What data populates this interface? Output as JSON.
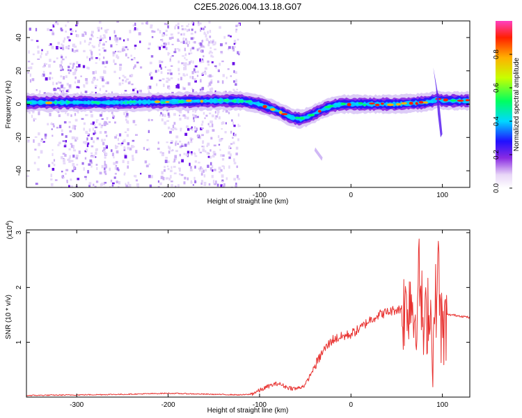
{
  "title": "C2E5.2026.004.13.18.G07",
  "chart_data": [
    {
      "type": "heatmap",
      "title": "C2E5.2026.004.13.18.G07",
      "xlabel": "Height of straight line (km)",
      "ylabel": "Frequency (Hz)",
      "xlim": [
        -355,
        130
      ],
      "ylim": [
        -50,
        50
      ],
      "xticks": [
        -300,
        -200,
        -100,
        0,
        100
      ],
      "xtick_labels": [
        "-300",
        "-200",
        "-100",
        "0",
        "100"
      ],
      "yticks": [
        -40,
        -20,
        0,
        20,
        40
      ],
      "ytick_labels": [
        "-40",
        "-20",
        "0",
        "20",
        "40"
      ],
      "colorbar": {
        "label": "Normalized spectral amplitude",
        "range": [
          0,
          1
        ],
        "ticks": [
          0.0,
          0.2,
          0.4,
          0.6,
          0.8
        ],
        "tick_labels": [
          "0.0",
          "0.2",
          "0.4",
          "0.6",
          "0.8"
        ]
      },
      "ridge": {
        "height_km": [
          -355,
          -300,
          -250,
          -200,
          -150,
          -120,
          -100,
          -80,
          -65,
          -55,
          -45,
          -30,
          -20,
          -10,
          0,
          20,
          50,
          80,
          90,
          95,
          100,
          130
        ],
        "frequency_hz": [
          1,
          1,
          1,
          1.5,
          2,
          2,
          0,
          -4,
          -8,
          -9,
          -7,
          -3,
          -1,
          0,
          0,
          0,
          0,
          1,
          2,
          3,
          2,
          2
        ]
      },
      "noise_region_km": [
        -355,
        -125
      ]
    },
    {
      "type": "line",
      "xlabel": "Height of straight line (km)",
      "ylabel": "SNR (10 * v/v)",
      "scale_label": "(x10",
      "scale_exponent": "4",
      "scale_suffix": ")",
      "xlim": [
        -355,
        130
      ],
      "ylim": [
        0,
        3.05
      ],
      "xticks": [
        -300,
        -200,
        -100,
        0,
        100
      ],
      "xtick_labels": [
        "-300",
        "-200",
        "-100",
        "0",
        "100"
      ],
      "yticks": [
        1,
        2,
        3
      ],
      "ytick_labels": [
        "1",
        "2",
        "3"
      ],
      "series": [
        {
          "name": "SNR",
          "color": "#e8312f",
          "x": [
            -355,
            -300,
            -250,
            -200,
            -150,
            -120,
            -110,
            -100,
            -90,
            -80,
            -70,
            -60,
            -50,
            -40,
            -30,
            -20,
            -10,
            0,
            10,
            20,
            30,
            40,
            50,
            60,
            65,
            70,
            75,
            80,
            85,
            90,
            95,
            100,
            105,
            110,
            120,
            130
          ],
          "y": [
            0.03,
            0.04,
            0.05,
            0.07,
            0.05,
            0.04,
            0.05,
            0.12,
            0.2,
            0.25,
            0.18,
            0.15,
            0.22,
            0.55,
            0.85,
            1.05,
            1.1,
            1.15,
            1.25,
            1.4,
            1.5,
            1.55,
            1.6,
            1.6,
            1.9,
            1.4,
            2.2,
            1.0,
            1.8,
            0.9,
            2.4,
            1.0,
            1.5,
            1.5,
            1.48,
            1.45
          ]
        }
      ]
    }
  ]
}
